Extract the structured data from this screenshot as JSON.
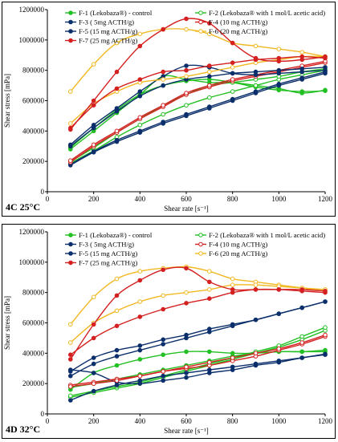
{
  "chart_data": [
    {
      "type": "line",
      "panel_label": "4C 25°C",
      "xlabel": "Shear rate [s⁻¹]",
      "ylabel": "Shear stress [mPa]",
      "xlim": [
        0,
        1200
      ],
      "ylim": [
        0,
        1200000
      ],
      "x_ticks": [
        "0",
        "200",
        "400",
        "600",
        "800",
        "1000",
        "1200"
      ],
      "y_ticks": [
        "0",
        "200000",
        "400000",
        "600000",
        "800000",
        "1000000",
        "1200000"
      ],
      "grid": false,
      "legend_position": "top-left",
      "x": [
        100,
        200,
        300,
        400,
        500,
        600,
        700,
        800,
        900,
        1000,
        1100,
        1200
      ],
      "series": [
        {
          "name": "F-1 (Lekobaza®) - control",
          "color": "#22c022",
          "up": [
            290000,
            420000,
            540000,
            640000,
            700000,
            730000,
            740000,
            720000,
            690000,
            670000,
            660000,
            665000
          ],
          "down": [
            280000,
            400000,
            520000,
            640000,
            760000,
            740000,
            720000,
            720000,
            700000,
            680000,
            650000,
            670000
          ]
        },
        {
          "name": "F-2 (Lekobaza® with 1 mol/L acetic acid)",
          "color": "#22c022",
          "up": [
            190000,
            270000,
            360000,
            440000,
            510000,
            570000,
            620000,
            660000,
            700000,
            740000,
            770000,
            800000
          ],
          "down": [
            200000,
            290000,
            390000,
            480000,
            570000,
            640000,
            700000,
            720000,
            740000,
            760000,
            790000,
            810000
          ]
        },
        {
          "name": "F-3 ( 5mg ACTH/g)",
          "color": "#0b2f6b",
          "up": [
            175000,
            260000,
            330000,
            390000,
            450000,
            500000,
            550000,
            600000,
            650000,
            700000,
            740000,
            780000
          ],
          "down": [
            180000,
            265000,
            340000,
            400000,
            460000,
            510000,
            560000,
            610000,
            660000,
            710000,
            750000,
            790000
          ]
        },
        {
          "name": "F-4 (10 mg ACTH/g)",
          "color": "#d42020",
          "up": [
            195000,
            300000,
            390000,
            480000,
            560000,
            640000,
            690000,
            730000,
            760000,
            790000,
            820000,
            850000
          ],
          "down": [
            205000,
            310000,
            400000,
            490000,
            570000,
            650000,
            700000,
            740000,
            770000,
            800000,
            830000,
            860000
          ]
        },
        {
          "name": "F-5 (15 mg ACTH/g)",
          "color": "#0b2f6b",
          "up": [
            310000,
            440000,
            550000,
            660000,
            760000,
            830000,
            820000,
            780000,
            770000,
            780000,
            790000,
            800000
          ],
          "down": [
            300000,
            420000,
            530000,
            630000,
            700000,
            740000,
            760000,
            780000,
            790000,
            800000,
            810000,
            820000
          ]
        },
        {
          "name": "F-6 (20 mg ACTH/g)",
          "color": "#f2b822",
          "up": [
            660000,
            840000,
            980000,
            1040000,
            1070000,
            1070000,
            1040000,
            980000,
            960000,
            940000,
            920000,
            890000
          ],
          "down": [
            450000,
            580000,
            660000,
            720000,
            740000,
            760000,
            790000,
            820000,
            850000,
            870000,
            890000,
            890000
          ]
        },
        {
          "name": "F-7 (25 mg ACTH/g)",
          "color": "#d42020",
          "up": [
            410000,
            600000,
            790000,
            960000,
            1070000,
            1140000,
            1110000,
            980000,
            880000,
            860000,
            870000,
            890000
          ],
          "down": [
            420000,
            570000,
            680000,
            740000,
            790000,
            800000,
            830000,
            850000,
            870000,
            880000,
            890000,
            880000
          ]
        }
      ]
    },
    {
      "type": "line",
      "panel_label": "4D 32°C",
      "xlabel": "Shear rate [s⁻¹]",
      "ylabel": "Shear stress [mPa]",
      "xlim": [
        0,
        1200
      ],
      "ylim": [
        0,
        1200000
      ],
      "x_ticks": [
        "0",
        "200",
        "400",
        "600",
        "800",
        "1000",
        "1200"
      ],
      "y_ticks": [
        "0",
        "200000",
        "400000",
        "600000",
        "800000",
        "1000000",
        "1200000"
      ],
      "grid": false,
      "legend_position": "top-left",
      "x": [
        100,
        200,
        300,
        400,
        500,
        600,
        700,
        800,
        900,
        1000,
        1100,
        1200
      ],
      "series": [
        {
          "name": "F-1 (Lekobaza®) - control",
          "color": "#22c022",
          "up": [
            160000,
            270000,
            320000,
            360000,
            390000,
            410000,
            410000,
            400000,
            400000,
            410000,
            410000,
            410000
          ],
          "down": [
            175000,
            200000,
            230000,
            260000,
            290000,
            320000,
            350000,
            380000,
            400000,
            410000,
            410000,
            420000
          ]
        },
        {
          "name": "F-2 (Lekobaza® with 1 mol/L acetic acid)",
          "color": "#22c022",
          "up": [
            110000,
            140000,
            170000,
            200000,
            240000,
            280000,
            320000,
            360000,
            400000,
            440000,
            490000,
            550000
          ],
          "down": [
            120000,
            150000,
            180000,
            210000,
            250000,
            290000,
            330000,
            370000,
            410000,
            450000,
            510000,
            570000
          ]
        },
        {
          "name": "F-3 ( 5mg ACTH/g)",
          "color": "#0b2f6b",
          "up": [
            290000,
            270000,
            210000,
            200000,
            220000,
            240000,
            270000,
            290000,
            320000,
            340000,
            370000,
            390000
          ],
          "down": [
            90000,
            150000,
            190000,
            220000,
            250000,
            270000,
            290000,
            310000,
            330000,
            350000,
            370000,
            395000
          ]
        },
        {
          "name": "F-4 (10 mg ACTH/g)",
          "color": "#d42020",
          "up": [
            190000,
            210000,
            230000,
            250000,
            280000,
            300000,
            320000,
            350000,
            380000,
            420000,
            460000,
            510000
          ],
          "down": [
            180000,
            200000,
            220000,
            250000,
            280000,
            310000,
            340000,
            370000,
            400000,
            430000,
            470000,
            520000
          ]
        },
        {
          "name": "F-5 (15 mg ACTH/g)",
          "color": "#0b2f6b",
          "up": [
            280000,
            370000,
            420000,
            450000,
            490000,
            520000,
            560000,
            590000,
            620000,
            660000,
            700000,
            740000
          ],
          "down": [
            250000,
            330000,
            380000,
            420000,
            460000,
            500000,
            540000,
            580000,
            620000,
            660000,
            700000,
            740000
          ]
        },
        {
          "name": "F-6 (20 mg ACTH/g)",
          "color": "#f2b822",
          "up": [
            590000,
            770000,
            890000,
            940000,
            960000,
            970000,
            940000,
            890000,
            870000,
            850000,
            830000,
            810000
          ],
          "down": [
            470000,
            600000,
            680000,
            740000,
            780000,
            800000,
            820000,
            850000,
            850000,
            840000,
            830000,
            820000
          ]
        },
        {
          "name": "F-7 (25 mg ACTH/g)",
          "color": "#d42020",
          "up": [
            360000,
            590000,
            780000,
            880000,
            950000,
            960000,
            870000,
            820000,
            820000,
            820000,
            820000,
            810000
          ],
          "down": [
            390000,
            500000,
            580000,
            640000,
            690000,
            730000,
            760000,
            800000,
            820000,
            820000,
            810000,
            800000
          ]
        }
      ]
    }
  ]
}
